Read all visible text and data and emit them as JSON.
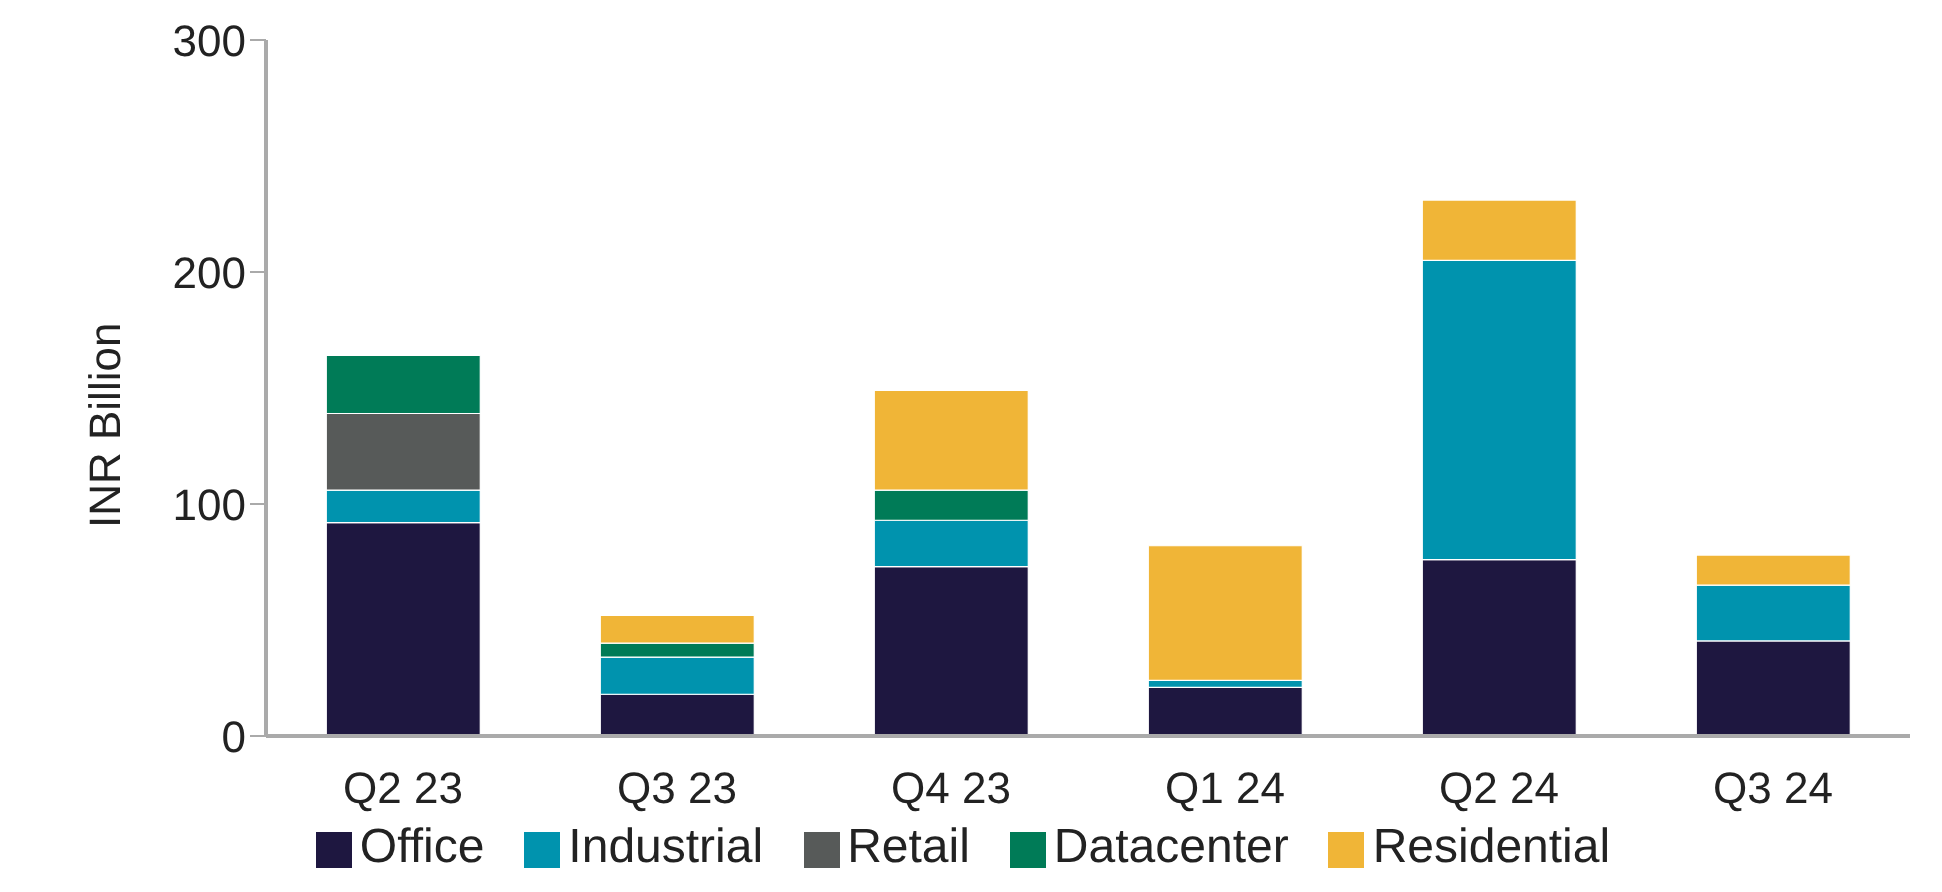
{
  "chart_data": {
    "type": "bar",
    "stacked": true,
    "ylabel": "INR Billion",
    "categories": [
      "Q2 23",
      "Q3 23",
      "Q4 23",
      "Q1 24",
      "Q2 24",
      "Q3 24"
    ],
    "series": [
      {
        "name": "Office",
        "color": "#1e1740",
        "values": [
          92,
          18,
          73,
          21,
          76,
          41
        ]
      },
      {
        "name": "Industrial",
        "color": "#0093ae",
        "values": [
          14,
          16,
          20,
          3,
          129,
          24
        ]
      },
      {
        "name": "Retail",
        "color": "#575a59",
        "values": [
          33,
          null,
          null,
          null,
          null,
          null
        ]
      },
      {
        "name": "Datacenter",
        "color": "#007b57",
        "values": [
          25,
          6,
          13,
          null,
          null,
          null
        ]
      },
      {
        "name": "Residential",
        "color": "#f0b537",
        "values": [
          null,
          12,
          43,
          58,
          26,
          13
        ]
      }
    ],
    "ylim": [
      0,
      300
    ],
    "yticks": [
      0,
      100,
      200,
      300
    ],
    "grid": false,
    "legend": "bottom"
  }
}
